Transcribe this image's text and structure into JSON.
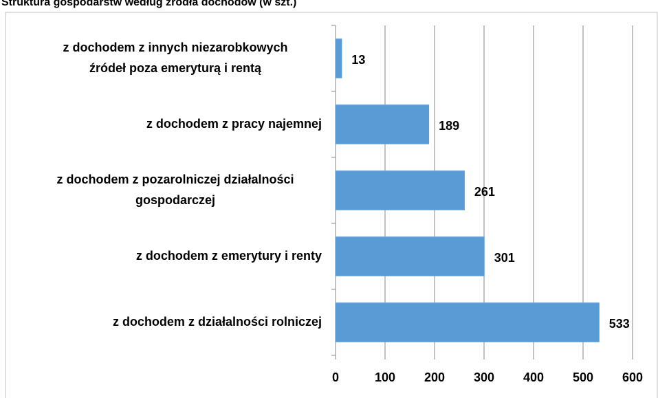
{
  "chart_data": {
    "type": "barh",
    "title": "Struktura gospodarstw według źródła dochodów (w szt.)",
    "categories": [
      [
        "z dochodem z innych niezarobkowych",
        "źródeł poza emeryturą i rentą"
      ],
      [
        "z dochodem z pracy najemnej"
      ],
      [
        "z dochodem z pozarolniczej działalności",
        "gospodarczej"
      ],
      [
        "z dochodem z emerytury i renty"
      ],
      [
        "z dochodem z działalności rolniczej"
      ]
    ],
    "values": [
      13,
      189,
      261,
      301,
      533
    ],
    "color": "#5b9bd5",
    "xlim": [
      0,
      600
    ],
    "xticks": [
      0,
      100,
      200,
      300,
      400,
      500,
      600
    ],
    "grid": true
  }
}
